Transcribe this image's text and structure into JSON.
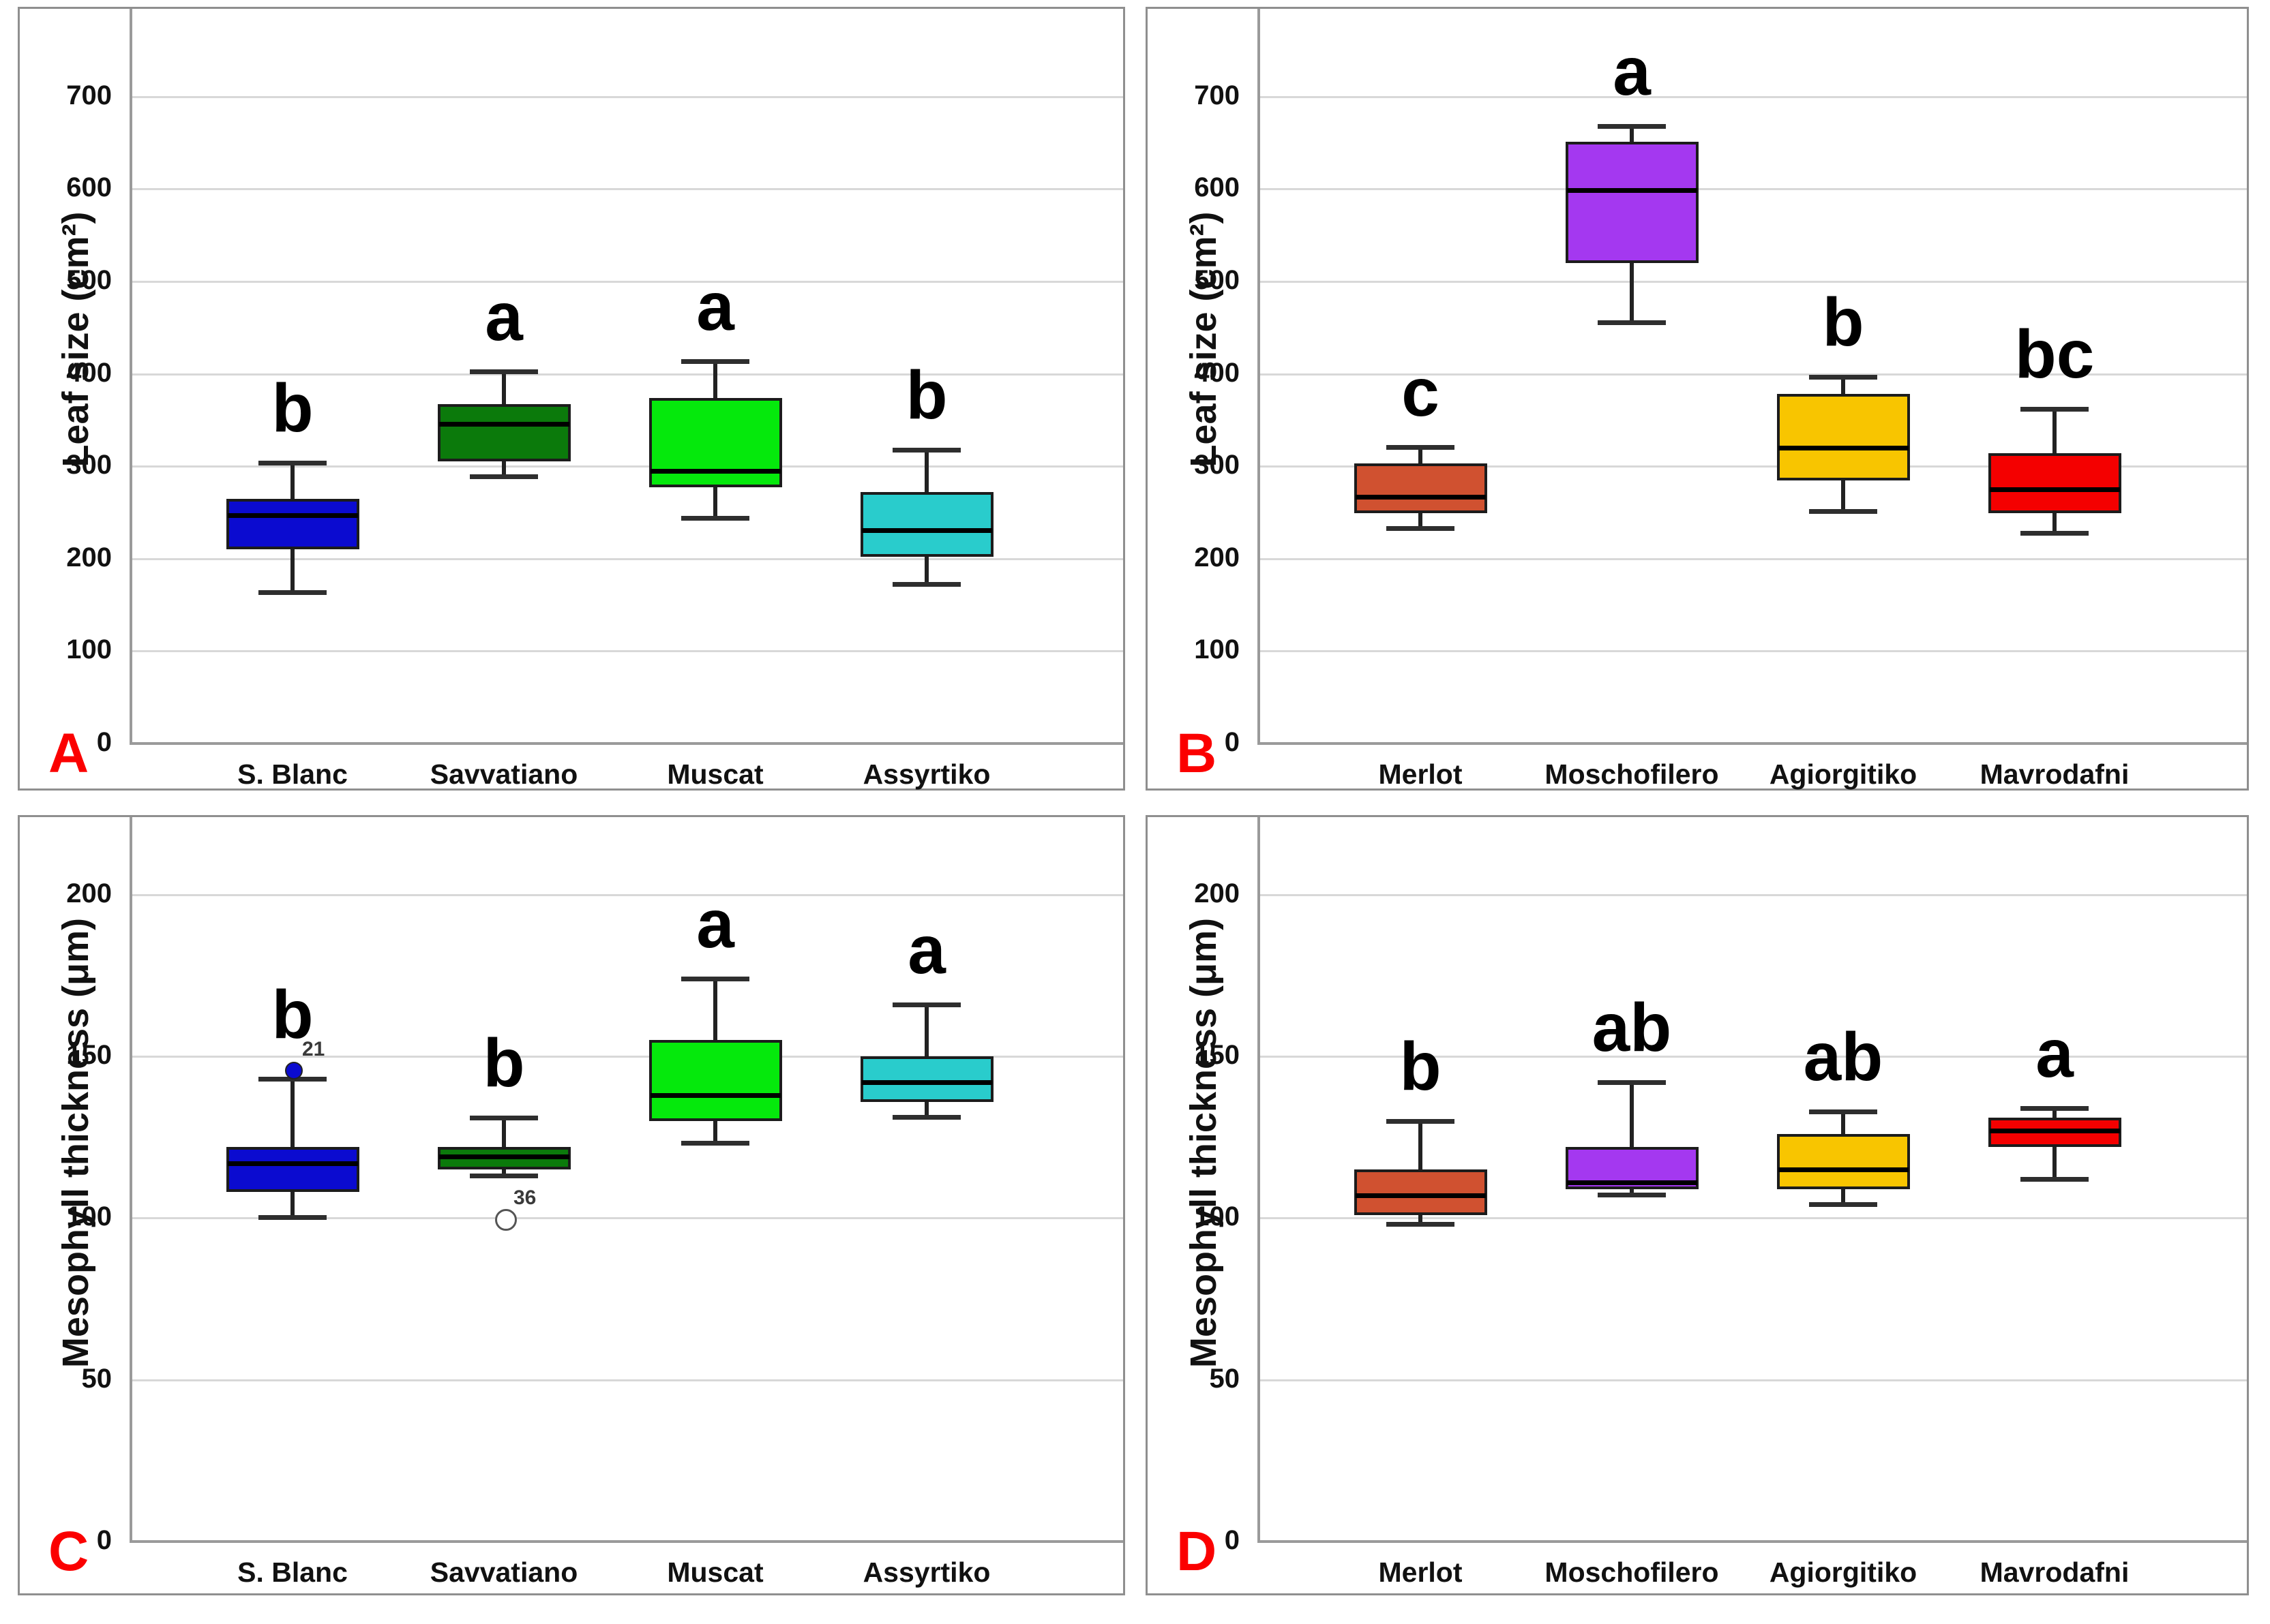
{
  "figure": {
    "background": "#ffffff",
    "panel_border_color": "#8f8f8f",
    "gridline_color": "#d8d8d8",
    "axis_color": "#9a9a9a",
    "corner_label_color": "#fb0000",
    "box_edge_color": "#1c1c1c",
    "median_color": "#000000"
  },
  "chart_data": [
    {
      "type": "boxplot",
      "panel_label": "A",
      "ylabel": "Leaf size (cm²)",
      "ylim": [
        0,
        795
      ],
      "yticks": [
        0,
        100,
        200,
        300,
        400,
        500,
        600,
        700
      ],
      "grid": true,
      "legend": "none",
      "categories": [
        "S. Blanc",
        "Savvatiano",
        "Muscat",
        "Assyrtiko"
      ],
      "series": [
        {
          "name": "S. Blanc",
          "color": "#0b0bd0",
          "sig_letter": "b",
          "whisker_low": 163,
          "q1": 210,
          "median": 247,
          "q3": 265,
          "whisker_high": 304,
          "outliers": []
        },
        {
          "name": "Savvatiano",
          "color": "#0b7a0b",
          "sig_letter": "a",
          "whisker_low": 288,
          "q1": 305,
          "median": 346,
          "q3": 367,
          "whisker_high": 403,
          "outliers": []
        },
        {
          "name": "Muscat",
          "color": "#05e90c",
          "sig_letter": "a",
          "whisker_low": 243,
          "q1": 277,
          "median": 295,
          "q3": 374,
          "whisker_high": 414,
          "outliers": []
        },
        {
          "name": "Assyrtiko",
          "color": "#29cccc",
          "sig_letter": "b",
          "whisker_low": 172,
          "q1": 202,
          "median": 231,
          "q3": 272,
          "whisker_high": 318,
          "outliers": []
        }
      ]
    },
    {
      "type": "boxplot",
      "panel_label": "B",
      "ylabel": "Leaf size (cm²)",
      "ylim": [
        0,
        795
      ],
      "yticks": [
        0,
        100,
        200,
        300,
        400,
        500,
        600,
        700
      ],
      "grid": true,
      "legend": "none",
      "categories": [
        "Merlot",
        "Moschofilero",
        "Agiorgitiko",
        "Mavrodafni"
      ],
      "series": [
        {
          "name": "Merlot",
          "color": "#d05130",
          "sig_letter": "c",
          "whisker_low": 232,
          "q1": 249,
          "median": 267,
          "q3": 303,
          "whisker_high": 321,
          "outliers": []
        },
        {
          "name": "Moschofilero",
          "color": "#a438f0",
          "sig_letter": "a",
          "whisker_low": 455,
          "q1": 520,
          "median": 599,
          "q3": 651,
          "whisker_high": 668,
          "outliers": []
        },
        {
          "name": "Agiorgitiko",
          "color": "#f8c500",
          "sig_letter": "b",
          "whisker_low": 251,
          "q1": 285,
          "median": 320,
          "q3": 378,
          "whisker_high": 397,
          "outliers": []
        },
        {
          "name": "Mavrodafni",
          "color": "#f40000",
          "sig_letter": "bc",
          "whisker_low": 227,
          "q1": 249,
          "median": 275,
          "q3": 314,
          "whisker_high": 362,
          "outliers": []
        }
      ]
    },
    {
      "type": "boxplot",
      "panel_label": "C",
      "ylabel": "Mesophyll thickness (μm)",
      "ylim": [
        0,
        224
      ],
      "yticks": [
        0,
        50,
        100,
        150,
        200
      ],
      "grid": true,
      "legend": "none",
      "categories": [
        "S. Blanc",
        "Savvatiano",
        "Muscat",
        "Assyrtiko"
      ],
      "series": [
        {
          "name": "S. Blanc",
          "color": "#0b0bd0",
          "sig_letter": "b",
          "whisker_low": 100,
          "q1": 108,
          "median": 117,
          "q3": 122,
          "whisker_high": 143,
          "outliers": [
            {
              "value": 146,
              "label": "21",
              "style": "filled"
            }
          ]
        },
        {
          "name": "Savvatiano",
          "color": "#0b7a0b",
          "sig_letter": "b",
          "whisker_low": 113,
          "q1": 115,
          "median": 119,
          "q3": 122,
          "whisker_high": 131,
          "outliers": [
            {
              "value": 100,
              "label": "36",
              "style": "open"
            }
          ]
        },
        {
          "name": "Muscat",
          "color": "#05e90c",
          "sig_letter": "a",
          "whisker_low": 123,
          "q1": 130,
          "median": 138,
          "q3": 155,
          "whisker_high": 174,
          "outliers": []
        },
        {
          "name": "Assyrtiko",
          "color": "#29cccc",
          "sig_letter": "a",
          "whisker_low": 131,
          "q1": 136,
          "median": 142,
          "q3": 150,
          "whisker_high": 166,
          "outliers": []
        }
      ]
    },
    {
      "type": "boxplot",
      "panel_label": "D",
      "ylabel": "Mesophyll thickness (μm)",
      "ylim": [
        0,
        224
      ],
      "yticks": [
        0,
        50,
        100,
        150,
        200
      ],
      "grid": true,
      "legend": "none",
      "categories": [
        "Merlot",
        "Moschofilero",
        "Agiorgitiko",
        "Mavrodafni"
      ],
      "series": [
        {
          "name": "Merlot",
          "color": "#d05130",
          "sig_letter": "b",
          "whisker_low": 98,
          "q1": 101,
          "median": 107,
          "q3": 115,
          "whisker_high": 130,
          "outliers": []
        },
        {
          "name": "Moschofilero",
          "color": "#a438f0",
          "sig_letter": "ab",
          "whisker_low": 107,
          "q1": 109,
          "median": 111,
          "q3": 122,
          "whisker_high": 142,
          "outliers": []
        },
        {
          "name": "Agiorgitiko",
          "color": "#f8c500",
          "sig_letter": "ab",
          "whisker_low": 104,
          "q1": 109,
          "median": 115,
          "q3": 126,
          "whisker_high": 133,
          "outliers": []
        },
        {
          "name": "Mavrodafni",
          "color": "#f40000",
          "sig_letter": "a",
          "whisker_low": 112,
          "q1": 122,
          "median": 127,
          "q3": 131,
          "whisker_high": 134,
          "outliers": []
        }
      ]
    }
  ]
}
